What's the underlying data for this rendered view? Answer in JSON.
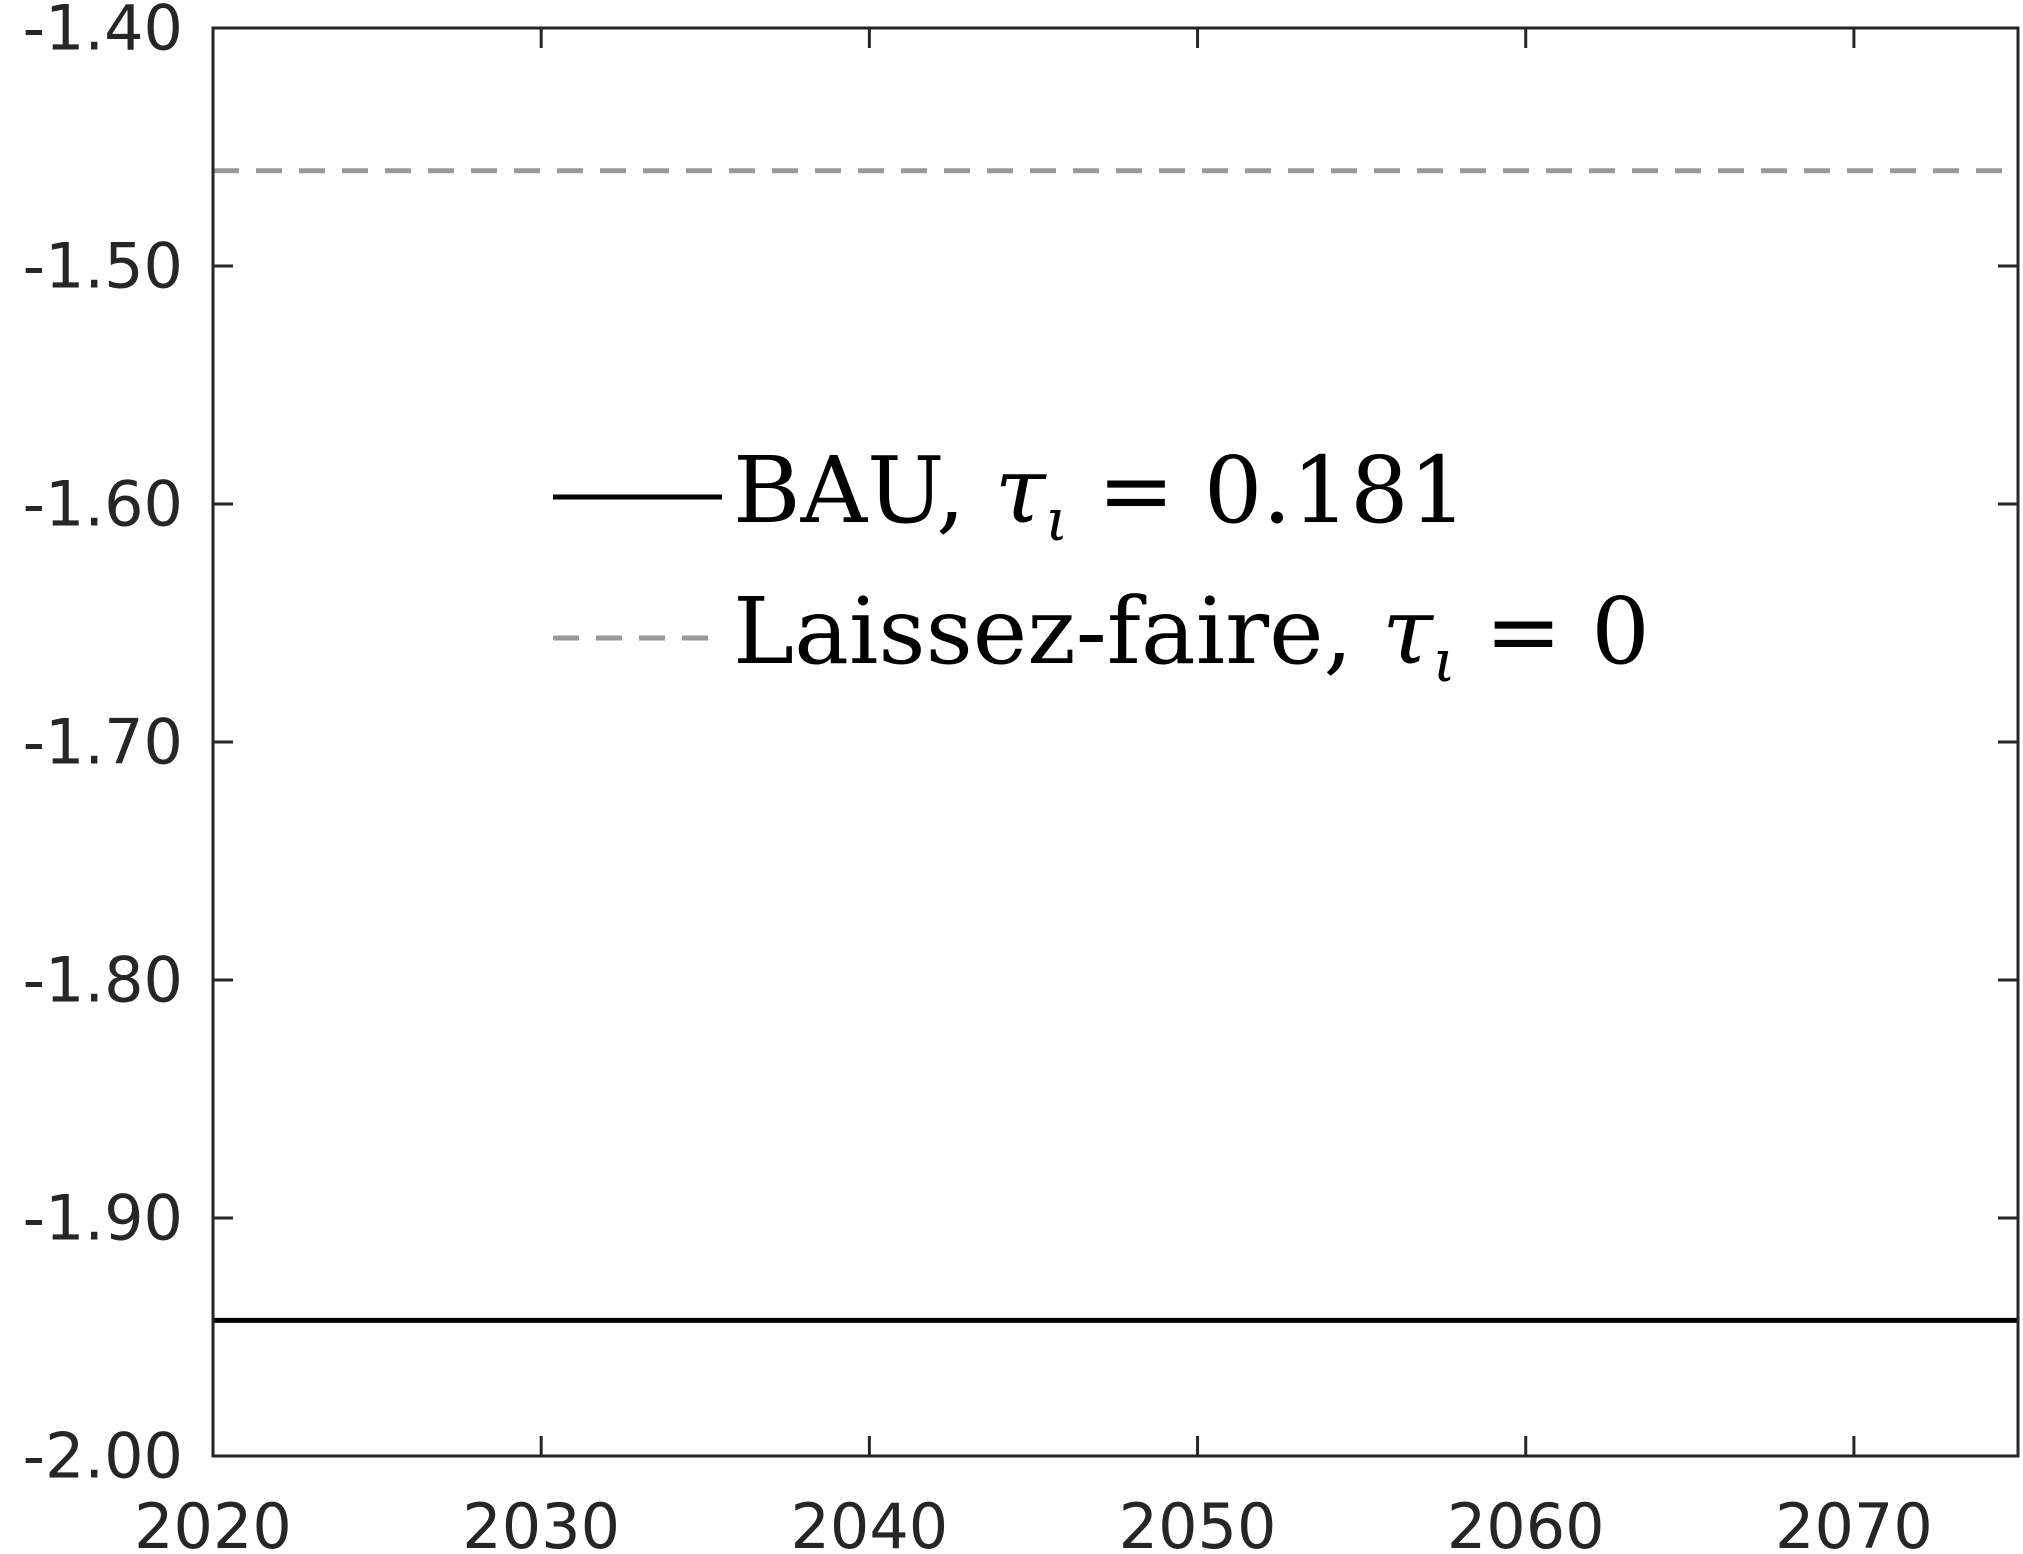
{
  "chart_data": {
    "type": "line",
    "title": "",
    "xlabel": "",
    "ylabel": "",
    "xlim": [
      2020,
      2075
    ],
    "ylim": [
      -2.0,
      -1.4
    ],
    "x_ticks": [
      2020,
      2030,
      2040,
      2050,
      2060,
      2070
    ],
    "x_tick_labels": [
      "2020",
      "2030",
      "2040",
      "2050",
      "2060",
      "2070"
    ],
    "y_ticks": [
      -1.4,
      -1.5,
      -1.6,
      -1.7,
      -1.8,
      -1.9,
      -2.0
    ],
    "y_tick_labels": [
      "-1.40",
      "-1.50",
      "-1.60",
      "-1.70",
      "-1.80",
      "-1.90",
      "-2.00"
    ],
    "grid": false,
    "legend_position": "center",
    "series": [
      {
        "name": "BAU, τ_ι = 0.181",
        "name_text": "BAU, ",
        "name_symbol": "τ",
        "name_subscript": "ι",
        "name_value": " = 0.181",
        "style": "solid",
        "color": "#000000",
        "x": [
          2020,
          2075
        ],
        "y": [
          -1.943,
          -1.943
        ]
      },
      {
        "name": "Laissez-faire, τ_ι = 0",
        "name_text": "Laissez-faire, ",
        "name_symbol": "τ",
        "name_subscript": "ι",
        "name_value": " = 0",
        "style": "dashed",
        "color": "#999999",
        "x": [
          2020,
          2075
        ],
        "y": [
          -1.46,
          -1.46
        ]
      }
    ]
  }
}
